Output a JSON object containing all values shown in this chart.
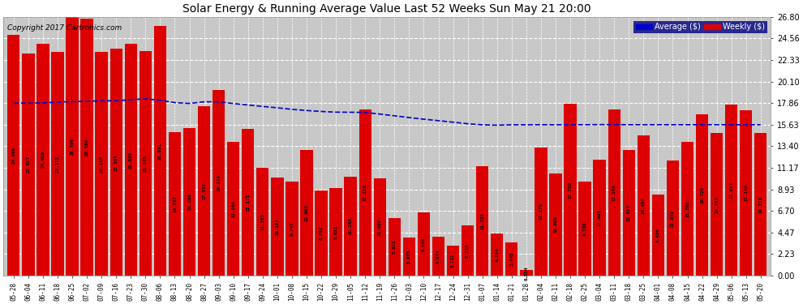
{
  "title": "Solar Energy & Running Average Value Last 52 Weeks Sun May 21 20:00",
  "copyright": "Copyright 2017 Cartronics.com",
  "bar_color": "#dd0000",
  "avg_color": "#0000cc",
  "background_color": "#ffffff",
  "plot_bg_color": "#c8c8c8",
  "grid_color": "#ffffff",
  "ylim": [
    0.0,
    26.8
  ],
  "yticks": [
    0.0,
    2.23,
    4.47,
    6.7,
    8.93,
    11.17,
    13.4,
    15.63,
    17.86,
    20.1,
    22.33,
    24.56,
    26.8
  ],
  "categories": [
    "05-28",
    "06-04",
    "06-11",
    "06-18",
    "06-25",
    "07-02",
    "07-09",
    "07-16",
    "07-23",
    "07-30",
    "08-06",
    "08-13",
    "08-20",
    "08-27",
    "09-03",
    "09-10",
    "09-17",
    "09-24",
    "10-01",
    "10-08",
    "10-15",
    "10-22",
    "10-29",
    "11-05",
    "11-12",
    "11-19",
    "11-26",
    "12-03",
    "12-10",
    "12-17",
    "12-24",
    "12-31",
    "01-07",
    "01-14",
    "01-21",
    "01-28",
    "02-04",
    "02-11",
    "02-18",
    "02-25",
    "03-04",
    "03-11",
    "03-18",
    "03-25",
    "04-01",
    "04-08",
    "04-15",
    "04-22",
    "04-29",
    "05-06",
    "05-13",
    "05-20"
  ],
  "weekly_values": [
    24.896,
    23.027,
    24.019,
    23.173,
    26.796,
    26.569,
    23.15,
    23.5,
    23.98,
    23.285,
    25.831,
    14.837,
    15.295,
    17.552,
    19.236,
    13.866,
    15.171,
    11.163,
    10.185,
    9.747,
    12.993,
    8.792,
    9.031,
    10.268,
    17.226,
    10.069,
    5.961,
    3.975,
    6.569,
    4.074,
    3.111,
    5.21,
    11.335,
    4.354,
    3.445,
    0.554,
    13.276,
    10.605,
    17.76,
    9.7,
    11.965,
    17.206,
    13.029,
    14.497,
    8.436,
    11.916,
    13.882,
    16.72,
    14.753,
    17.677,
    17.149,
    14.753
  ],
  "avg_values": [
    17.86,
    17.87,
    17.89,
    17.96,
    18.03,
    18.05,
    18.1,
    18.11,
    18.22,
    18.31,
    18.15,
    17.92,
    17.83,
    18.0,
    18.0,
    17.82,
    17.67,
    17.52,
    17.38,
    17.22,
    17.1,
    17.0,
    16.93,
    16.92,
    16.9,
    16.73,
    16.55,
    16.37,
    16.2,
    16.05,
    15.89,
    15.73,
    15.62,
    15.58,
    15.62,
    15.62,
    15.63,
    15.62,
    15.64,
    15.63,
    15.64,
    15.64,
    15.63,
    15.63,
    15.63,
    15.63,
    15.63,
    15.63,
    15.63,
    15.63,
    15.63,
    15.63
  ],
  "legend_avg_label": "Average ($)",
  "legend_weekly_label": "Weekly ($)"
}
